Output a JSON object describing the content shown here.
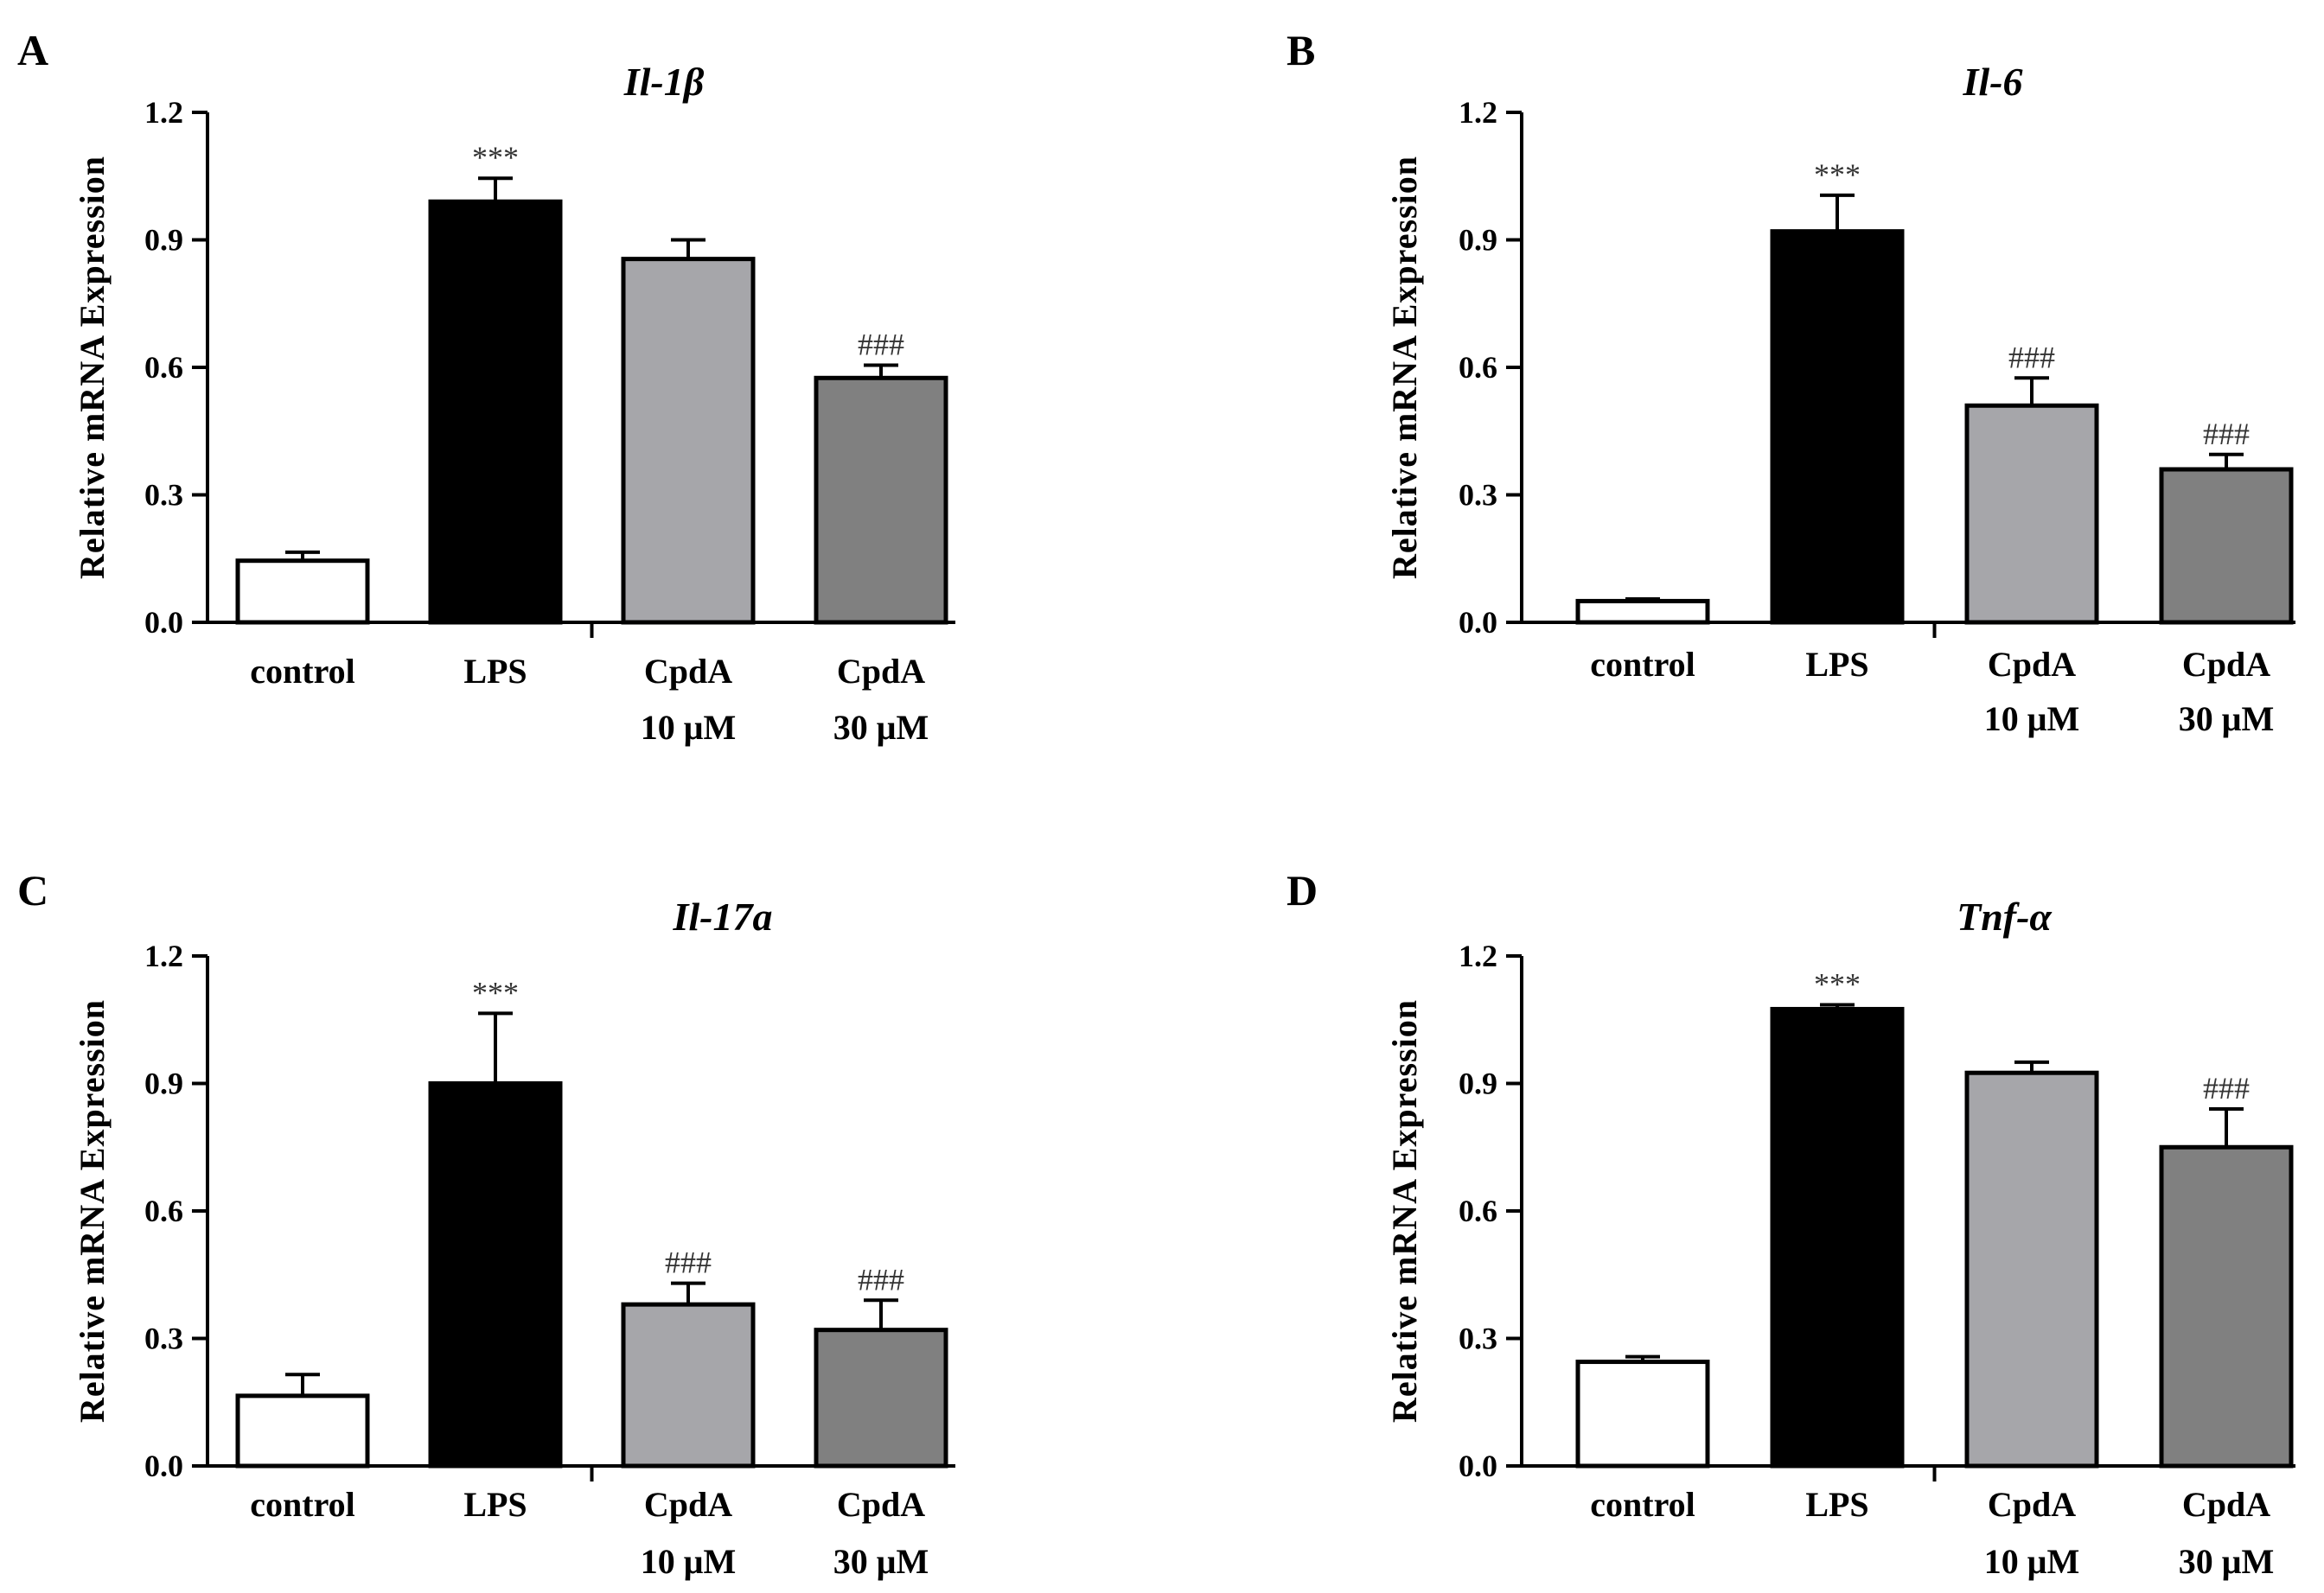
{
  "figure": {
    "panels": [
      {
        "letter": "A"
      },
      {
        "letter": "B"
      },
      {
        "letter": "C"
      },
      {
        "letter": "D"
      }
    ]
  },
  "chart_data": [
    {
      "type": "bar",
      "panel": "A",
      "title": "Il-1β",
      "ylabel": "Relative mRNA Expression",
      "xlabel": "",
      "ylim": [
        0,
        1.2
      ],
      "yticks": [
        "0.0",
        "0.3",
        "0.6",
        "0.9",
        "1.2"
      ],
      "categories": [
        [
          "control"
        ],
        [
          "LPS"
        ],
        [
          "CpdA",
          "10 μM"
        ],
        [
          "CpdA",
          "30 μM"
        ]
      ],
      "values": [
        0.145,
        0.99,
        0.855,
        0.575
      ],
      "errors": [
        0.02,
        0.055,
        0.045,
        0.03
      ],
      "annotations": [
        "",
        "***",
        "",
        "###"
      ],
      "colors": [
        "#ffffff",
        "#000000",
        "#a6a6aa",
        "#808080"
      ]
    },
    {
      "type": "bar",
      "panel": "B",
      "title": "Il-6",
      "ylabel": "Relative mRNA Expression",
      "xlabel": "",
      "ylim": [
        0,
        1.2
      ],
      "yticks": [
        "0.0",
        "0.3",
        "0.6",
        "0.9",
        "1.2"
      ],
      "categories": [
        [
          "control"
        ],
        [
          "LPS"
        ],
        [
          "CpdA",
          "10 μM"
        ],
        [
          "CpdA",
          "30 μM"
        ]
      ],
      "values": [
        0.05,
        0.92,
        0.51,
        0.36
      ],
      "errors": [
        0.005,
        0.085,
        0.065,
        0.035
      ],
      "annotations": [
        "",
        "***",
        "###",
        "###"
      ],
      "colors": [
        "#ffffff",
        "#000000",
        "#a6a6aa",
        "#808080"
      ]
    },
    {
      "type": "bar",
      "panel": "C",
      "title": "Il-17a",
      "ylabel": "Relative mRNA Expression",
      "xlabel": "",
      "ylim": [
        0,
        1.2
      ],
      "yticks": [
        "0.0",
        "0.3",
        "0.6",
        "0.9",
        "1.2"
      ],
      "categories": [
        [
          "control"
        ],
        [
          "LPS"
        ],
        [
          "CpdA",
          "10 μM"
        ],
        [
          "CpdA",
          "30 μM"
        ]
      ],
      "values": [
        0.165,
        0.9,
        0.38,
        0.32
      ],
      "errors": [
        0.05,
        0.165,
        0.05,
        0.07
      ],
      "annotations": [
        "",
        "***",
        "###",
        "###"
      ],
      "colors": [
        "#ffffff",
        "#000000",
        "#a6a6aa",
        "#808080"
      ]
    },
    {
      "type": "bar",
      "panel": "D",
      "title": "Tnf-α",
      "ylabel": "Relative mRNA Expression",
      "xlabel": "",
      "ylim": [
        0,
        1.2
      ],
      "yticks": [
        "0.0",
        "0.3",
        "0.6",
        "0.9",
        "1.2"
      ],
      "categories": [
        [
          "control"
        ],
        [
          "LPS"
        ],
        [
          "CpdA",
          "10 μM"
        ],
        [
          "CpdA",
          "30 μM"
        ]
      ],
      "values": [
        0.245,
        1.075,
        0.925,
        0.75
      ],
      "errors": [
        0.012,
        0.01,
        0.025,
        0.09
      ],
      "annotations": [
        "",
        "***",
        "",
        "###"
      ],
      "colors": [
        "#ffffff",
        "#000000",
        "#a6a6aa",
        "#808080"
      ]
    }
  ]
}
